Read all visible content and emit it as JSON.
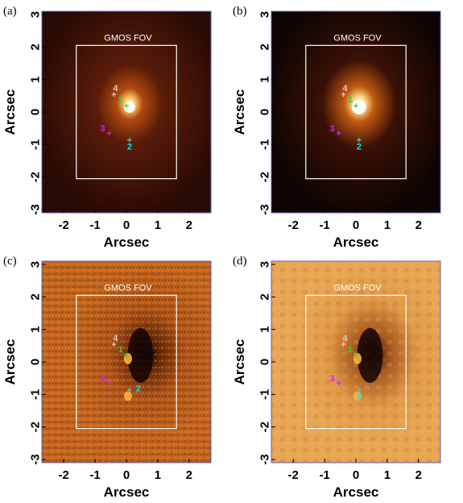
{
  "figure": {
    "panels": [
      {
        "label": "(a)",
        "fov_label": "GMOS FOV",
        "style": "flux-a"
      },
      {
        "label": "(b)",
        "fov_label": "GMOS FOV",
        "style": "flux-b"
      },
      {
        "label": "(c)",
        "fov_label": "GMOS FOV",
        "style": "resid-c"
      },
      {
        "label": "(d)",
        "fov_label": "GMOS FOV",
        "style": "resid-d"
      }
    ],
    "axis_label": "Arcsec",
    "x_ticks": [
      "-2",
      "-1",
      "0",
      "1",
      "2"
    ],
    "y_ticks": [
      "3",
      "2",
      "1",
      "0",
      "-1",
      "-2",
      "-3"
    ],
    "markers": [
      {
        "id": "1",
        "x": 0.0,
        "y": 0.2,
        "color": "#22dd22"
      },
      {
        "id": "2",
        "x": 0.1,
        "y": -0.85,
        "color": "#22dddd"
      },
      {
        "id": "3",
        "x": -0.55,
        "y": -0.65,
        "color": "#dd22dd"
      },
      {
        "id": "4",
        "x": -0.4,
        "y": 0.55,
        "color": "#f0c0c0"
      }
    ],
    "fov_box": {
      "x0": -1.6,
      "x1": 1.6,
      "y0": -2.05,
      "y1": 2.05
    }
  }
}
